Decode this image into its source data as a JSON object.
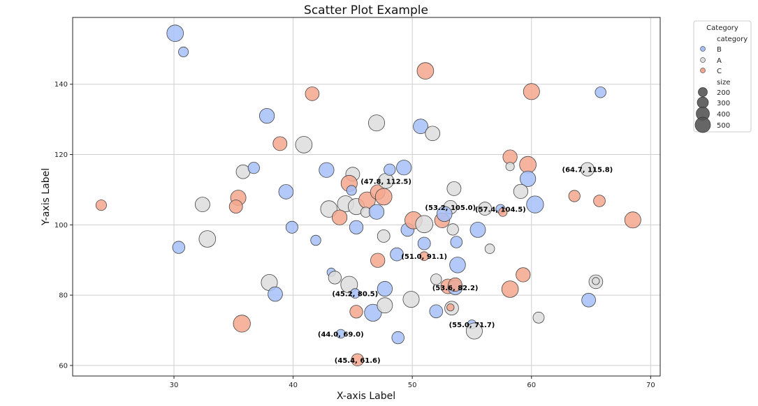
{
  "chart_data": {
    "type": "scatter",
    "title": "Scatter Plot Example",
    "xlabel": "X-axis Label",
    "ylabel": "Y-axis Label",
    "xlim": [
      21.5,
      70.8
    ],
    "ylim": [
      57,
      159
    ],
    "xticks": [
      30,
      40,
      50,
      60,
      70
    ],
    "yticks": [
      60,
      80,
      100,
      120,
      140
    ],
    "grid": true,
    "legend": {
      "title": "Category",
      "placement": "outside-top-right",
      "hue_title": "category",
      "hue_entries": [
        "B",
        "A",
        "C"
      ],
      "size_title": "size",
      "size_entries": [
        200,
        300,
        400,
        500
      ]
    },
    "colors": {
      "A": "#dddddd",
      "B": "#a4bff8",
      "C": "#f5a78e"
    },
    "points": [
      {
        "x": 30.1,
        "y": 154.5,
        "c": "B",
        "s": 420
      },
      {
        "x": 30.8,
        "y": 149.2,
        "c": "B",
        "s": 150
      },
      {
        "x": 37.8,
        "y": 131.0,
        "c": "B",
        "s": 340
      },
      {
        "x": 38.9,
        "y": 123.1,
        "c": "C",
        "s": 300
      },
      {
        "x": 41.6,
        "y": 137.3,
        "c": "C",
        "s": 290
      },
      {
        "x": 40.9,
        "y": 122.8,
        "c": "A",
        "s": 420
      },
      {
        "x": 47.0,
        "y": 129.0,
        "c": "A",
        "s": 400
      },
      {
        "x": 50.7,
        "y": 128.0,
        "c": "B",
        "s": 330
      },
      {
        "x": 51.7,
        "y": 126.0,
        "c": "A",
        "s": 320
      },
      {
        "x": 51.1,
        "y": 143.8,
        "c": "C",
        "s": 420
      },
      {
        "x": 60.0,
        "y": 137.9,
        "c": "C",
        "s": 400
      },
      {
        "x": 65.8,
        "y": 137.7,
        "c": "B",
        "s": 180
      },
      {
        "x": 23.9,
        "y": 105.6,
        "c": "C",
        "s": 170
      },
      {
        "x": 30.4,
        "y": 93.6,
        "c": "B",
        "s": 230
      },
      {
        "x": 32.4,
        "y": 105.8,
        "c": "A",
        "s": 330
      },
      {
        "x": 32.8,
        "y": 96.0,
        "c": "A",
        "s": 420
      },
      {
        "x": 35.8,
        "y": 115.1,
        "c": "A",
        "s": 290
      },
      {
        "x": 36.7,
        "y": 116.2,
        "c": "B",
        "s": 200
      },
      {
        "x": 35.4,
        "y": 107.7,
        "c": "C",
        "s": 360
      },
      {
        "x": 35.2,
        "y": 105.2,
        "c": "C",
        "s": 270
      },
      {
        "x": 39.4,
        "y": 109.4,
        "c": "B",
        "s": 320
      },
      {
        "x": 39.9,
        "y": 99.3,
        "c": "B",
        "s": 220
      },
      {
        "x": 41.9,
        "y": 95.6,
        "c": "B",
        "s": 160
      },
      {
        "x": 42.8,
        "y": 115.6,
        "c": "B",
        "s": 340
      },
      {
        "x": 45.0,
        "y": 114.4,
        "c": "A",
        "s": 300
      },
      {
        "x": 44.7,
        "y": 111.8,
        "c": "C",
        "s": 400
      },
      {
        "x": 44.9,
        "y": 109.8,
        "c": "B",
        "s": 150
      },
      {
        "x": 43.0,
        "y": 104.5,
        "c": "A",
        "s": 420
      },
      {
        "x": 44.4,
        "y": 106.0,
        "c": "A",
        "s": 400
      },
      {
        "x": 45.3,
        "y": 105.2,
        "c": "A",
        "s": 400
      },
      {
        "x": 46.2,
        "y": 107.0,
        "c": "C",
        "s": 420
      },
      {
        "x": 46.1,
        "y": 103.6,
        "c": "A",
        "s": 160
      },
      {
        "x": 47.1,
        "y": 109.3,
        "c": "C",
        "s": 330
      },
      {
        "x": 47.6,
        "y": 108.0,
        "c": "C",
        "s": 420
      },
      {
        "x": 47.8,
        "y": 112.5,
        "c": "A",
        "s": 350
      },
      {
        "x": 48.1,
        "y": 115.7,
        "c": "B",
        "s": 200
      },
      {
        "x": 49.3,
        "y": 116.3,
        "c": "B",
        "s": 340
      },
      {
        "x": 47.0,
        "y": 103.7,
        "c": "B",
        "s": 340
      },
      {
        "x": 43.9,
        "y": 102.1,
        "c": "C",
        "s": 340
      },
      {
        "x": 45.3,
        "y": 99.3,
        "c": "B",
        "s": 280
      },
      {
        "x": 47.6,
        "y": 96.8,
        "c": "A",
        "s": 240
      },
      {
        "x": 49.6,
        "y": 98.6,
        "c": "B",
        "s": 260
      },
      {
        "x": 50.1,
        "y": 101.3,
        "c": "C",
        "s": 460
      },
      {
        "x": 51.0,
        "y": 100.2,
        "c": "A",
        "s": 460
      },
      {
        "x": 52.5,
        "y": 101.3,
        "c": "C",
        "s": 340
      },
      {
        "x": 53.2,
        "y": 105.0,
        "c": "A",
        "s": 280
      },
      {
        "x": 52.7,
        "y": 103.1,
        "c": "B",
        "s": 350
      },
      {
        "x": 53.4,
        "y": 98.7,
        "c": "A",
        "s": 200
      },
      {
        "x": 53.5,
        "y": 110.3,
        "c": "A",
        "s": 300
      },
      {
        "x": 56.1,
        "y": 104.6,
        "c": "A",
        "s": 260
      },
      {
        "x": 57.4,
        "y": 104.5,
        "c": "B",
        "s": 130
      },
      {
        "x": 57.6,
        "y": 103.6,
        "c": "C",
        "s": 110
      },
      {
        "x": 55.5,
        "y": 98.6,
        "c": "B",
        "s": 360
      },
      {
        "x": 51.0,
        "y": 94.7,
        "c": "B",
        "s": 240
      },
      {
        "x": 53.7,
        "y": 95.1,
        "c": "B",
        "s": 210
      },
      {
        "x": 56.5,
        "y": 93.2,
        "c": "A",
        "s": 140
      },
      {
        "x": 48.7,
        "y": 91.6,
        "c": "B",
        "s": 260
      },
      {
        "x": 51.0,
        "y": 91.1,
        "c": "C",
        "s": 120
      },
      {
        "x": 47.1,
        "y": 89.9,
        "c": "C",
        "s": 310
      },
      {
        "x": 53.8,
        "y": 88.6,
        "c": "B",
        "s": 380
      },
      {
        "x": 58.2,
        "y": 119.3,
        "c": "C",
        "s": 310
      },
      {
        "x": 58.2,
        "y": 116.6,
        "c": "A",
        "s": 110
      },
      {
        "x": 59.7,
        "y": 117.1,
        "c": "C",
        "s": 420
      },
      {
        "x": 59.7,
        "y": 113.1,
        "c": "B",
        "s": 370
      },
      {
        "x": 59.1,
        "y": 109.5,
        "c": "A",
        "s": 310
      },
      {
        "x": 60.3,
        "y": 105.8,
        "c": "B",
        "s": 440
      },
      {
        "x": 64.7,
        "y": 115.8,
        "c": "A",
        "s": 280
      },
      {
        "x": 63.6,
        "y": 108.2,
        "c": "C",
        "s": 200
      },
      {
        "x": 65.7,
        "y": 106.8,
        "c": "C",
        "s": 210
      },
      {
        "x": 68.5,
        "y": 101.4,
        "c": "C",
        "s": 400
      },
      {
        "x": 43.2,
        "y": 86.5,
        "c": "B",
        "s": 110
      },
      {
        "x": 43.5,
        "y": 85.0,
        "c": "A",
        "s": 250
      },
      {
        "x": 44.7,
        "y": 83.0,
        "c": "A",
        "s": 430
      },
      {
        "x": 45.2,
        "y": 80.5,
        "c": "B",
        "s": 140
      },
      {
        "x": 47.7,
        "y": 81.8,
        "c": "B",
        "s": 340
      },
      {
        "x": 38.0,
        "y": 83.6,
        "c": "A",
        "s": 400
      },
      {
        "x": 38.5,
        "y": 80.3,
        "c": "B",
        "s": 320
      },
      {
        "x": 45.3,
        "y": 75.3,
        "c": "C",
        "s": 250
      },
      {
        "x": 46.7,
        "y": 75.0,
        "c": "B",
        "s": 440
      },
      {
        "x": 47.7,
        "y": 77.1,
        "c": "A",
        "s": 360
      },
      {
        "x": 49.9,
        "y": 78.8,
        "c": "A",
        "s": 400
      },
      {
        "x": 52.0,
        "y": 84.5,
        "c": "A",
        "s": 180
      },
      {
        "x": 53.0,
        "y": 82.5,
        "c": "C",
        "s": 330
      },
      {
        "x": 53.6,
        "y": 82.2,
        "c": "B",
        "s": 330
      },
      {
        "x": 53.6,
        "y": 83.0,
        "c": "C",
        "s": 280
      },
      {
        "x": 52.0,
        "y": 75.4,
        "c": "B",
        "s": 260
      },
      {
        "x": 53.3,
        "y": 76.3,
        "c": "A",
        "s": 290
      },
      {
        "x": 53.2,
        "y": 76.5,
        "c": "C",
        "s": 80
      },
      {
        "x": 55.0,
        "y": 71.7,
        "c": "B",
        "s": 120
      },
      {
        "x": 55.2,
        "y": 69.8,
        "c": "A",
        "s": 400
      },
      {
        "x": 59.3,
        "y": 85.8,
        "c": "C",
        "s": 310
      },
      {
        "x": 58.2,
        "y": 81.7,
        "c": "C",
        "s": 420
      },
      {
        "x": 60.6,
        "y": 73.6,
        "c": "A",
        "s": 190
      },
      {
        "x": 65.4,
        "y": 83.8,
        "c": "A",
        "s": 290
      },
      {
        "x": 65.4,
        "y": 84.0,
        "c": "A",
        "s": 80
      },
      {
        "x": 64.8,
        "y": 78.6,
        "c": "B",
        "s": 290
      },
      {
        "x": 35.7,
        "y": 71.9,
        "c": "C",
        "s": 440
      },
      {
        "x": 44.0,
        "y": 69.0,
        "c": "B",
        "s": 120
      },
      {
        "x": 48.8,
        "y": 67.9,
        "c": "B",
        "s": 230
      },
      {
        "x": 45.4,
        "y": 61.6,
        "c": "C",
        "s": 230
      }
    ],
    "annotations": [
      {
        "text": "(47.8, 112.5)",
        "x": 47.8,
        "y": 112.5
      },
      {
        "text": "(53.2, 105.0)",
        "x": 53.2,
        "y": 105.0
      },
      {
        "text": "(57.4, 104.5)",
        "x": 57.4,
        "y": 104.5
      },
      {
        "text": "(64.7, 115.8)",
        "x": 64.7,
        "y": 115.8
      },
      {
        "text": "(51.0, 91.1)",
        "x": 51.0,
        "y": 91.1
      },
      {
        "text": "(45.2, 80.5)",
        "x": 45.2,
        "y": 80.5
      },
      {
        "text": "(53.6, 82.2)",
        "x": 53.6,
        "y": 82.2
      },
      {
        "text": "(55.0, 71.7)",
        "x": 55.0,
        "y": 71.7
      },
      {
        "text": "(44.0, 69.0)",
        "x": 44.0,
        "y": 69.0
      },
      {
        "text": "(45.4, 61.6)",
        "x": 45.4,
        "y": 61.6
      }
    ]
  }
}
